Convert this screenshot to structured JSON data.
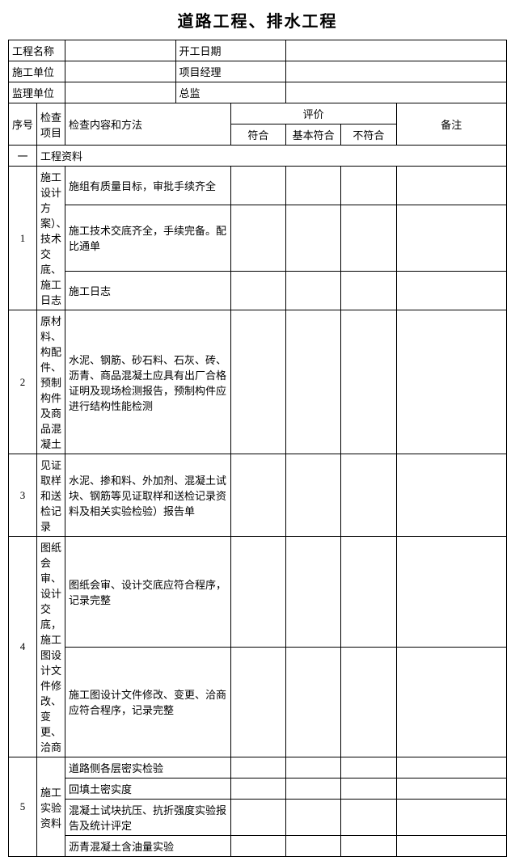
{
  "title": "道路工程、排水工程",
  "header": {
    "projectNameLabel": "工程名称",
    "startDateLabel": "开工日期",
    "constructUnitLabel": "施工单位",
    "pmLabel": "项目经理",
    "supervisionUnitLabel": "监理单位",
    "chiefLabel": "总监",
    "projectName": "",
    "startDate": "",
    "constructUnit": "",
    "pm": "",
    "supervisionUnit": "",
    "chief": ""
  },
  "cols": {
    "seq": "序号",
    "item": "检查项目",
    "method": "检查内容和方法",
    "evalGroup": "评价",
    "eval1": "符合",
    "eval2": "基本符合",
    "eval3": "不符合",
    "remark": "备注"
  },
  "section1": {
    "seq": "一",
    "name": "工程资料"
  },
  "r1": {
    "seq": "1",
    "item": "施工设计方案）、技术交底、施工日志",
    "m1": "施组有质量目标，审批手续齐全",
    "m2": "施工技术交底齐全，手续完备。配比通单",
    "m3": "施工日志"
  },
  "r2": {
    "seq": "2",
    "item": "原材料、构配件、预制构件及商品混凝土",
    "m1": "水泥、钢筋、砂石料、石灰、砖、沥青、商品混凝土应具有出厂合格证明及现场检测报告，预制构件应进行结构性能检测"
  },
  "r3": {
    "seq": "3",
    "item": "见证取样和送检记录",
    "m1": "水泥、掺和料、外加剂、混凝土试块、钢筋等见证取样和送检记录资料及相关实验检验）报告单"
  },
  "r4": {
    "seq": "4",
    "item": "图纸会审、设计交底，施工图设计文件修改、变更、洽商",
    "m1": "图纸会审、设计交底应符合程序，记录完整",
    "m2": "施工图设计文件修改、变更、洽商应符合程序，记录完整"
  },
  "r5": {
    "seq": "5",
    "item": "施工实验资料",
    "m1": "道路侧各层密实检验",
    "m2": "回填土密实度",
    "m3": "混凝土试块抗压、抗折强度实验报告及统计评定",
    "m4": "沥青混凝土含油量实验"
  },
  "style": {
    "border_color": "#000000",
    "background_color": "#ffffff",
    "text_color": "#000000",
    "title_fontsize": 20,
    "body_fontsize": 13,
    "font_family": "SimSun"
  }
}
